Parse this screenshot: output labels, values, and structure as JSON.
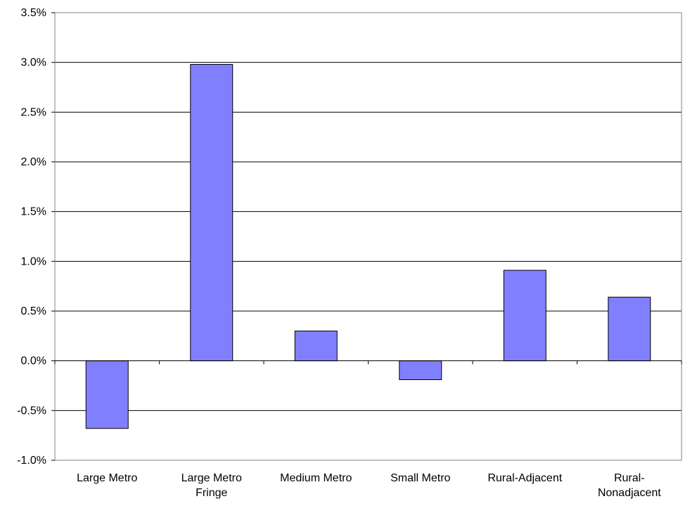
{
  "chart_data": {
    "type": "bar",
    "title": "",
    "xlabel": "",
    "ylabel": "",
    "categories": [
      [
        "Large Metro"
      ],
      [
        "Large Metro",
        "Fringe"
      ],
      [
        "Medium Metro"
      ],
      [
        "Small Metro"
      ],
      [
        "Rural-Adjacent"
      ],
      [
        "Rural-",
        "Nonadjacent"
      ]
    ],
    "values": [
      -0.68,
      2.98,
      0.3,
      -0.19,
      0.91,
      0.64
    ],
    "ylim": [
      -1.0,
      3.5
    ],
    "yticks": [
      -1.0,
      -0.5,
      0.0,
      0.5,
      1.0,
      1.5,
      2.0,
      2.5,
      3.0,
      3.5
    ],
    "ytick_labels": [
      "-1.0%",
      "-0.5%",
      "0.0%",
      "0.5%",
      "1.0%",
      "1.5%",
      "2.0%",
      "2.5%",
      "3.0%",
      "3.5%"
    ],
    "grid": true,
    "legend": "none",
    "colors": {
      "bar_fill": "#8080ff",
      "bar_stroke": "#000000",
      "grid": "#000000",
      "frame": "#808080"
    }
  }
}
